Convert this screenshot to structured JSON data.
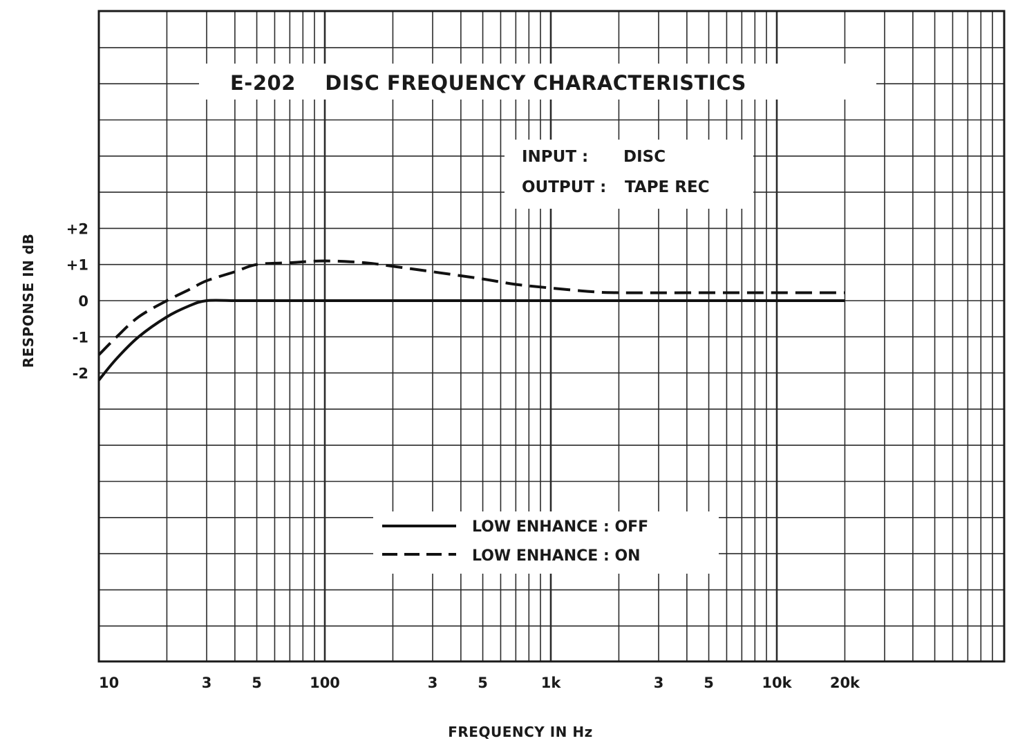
{
  "chart_data": {
    "type": "line",
    "title": "E-202    DISC FREQUENCY CHARACTERISTICS",
    "conditions": {
      "input_label": "INPUT :",
      "input_value": "DISC",
      "output_label": "OUTPUT :",
      "output_value": "TAPE REC"
    },
    "xlabel": "FREQUENCY IN Hz",
    "ylabel": "RESPONSE IN dB",
    "x_scale": "log",
    "xlim": [
      10,
      100000
    ],
    "ylim": [
      -10,
      8
    ],
    "grid": true,
    "legend_position": "bottom-center",
    "x_ticks": [
      {
        "value": 10,
        "label": "10"
      },
      {
        "value": 30,
        "label": "3"
      },
      {
        "value": 50,
        "label": "5"
      },
      {
        "value": 100,
        "label": "100"
      },
      {
        "value": 300,
        "label": "3"
      },
      {
        "value": 500,
        "label": "5"
      },
      {
        "value": 1000,
        "label": "1k"
      },
      {
        "value": 3000,
        "label": "3"
      },
      {
        "value": 5000,
        "label": "5"
      },
      {
        "value": 10000,
        "label": "10k"
      },
      {
        "value": 20000,
        "label": "20k"
      }
    ],
    "y_ticks": [
      {
        "value": 2,
        "label": "+2"
      },
      {
        "value": 1,
        "label": "+1"
      },
      {
        "value": 0,
        "label": "0"
      },
      {
        "value": -1,
        "label": "-1"
      },
      {
        "value": -2,
        "label": "-2"
      }
    ],
    "series": [
      {
        "name": "LOW ENHANCE : OFF",
        "style": "solid",
        "x": [
          10,
          12,
          15,
          20,
          25,
          30,
          40,
          50,
          100,
          1000,
          10000,
          20000
        ],
        "values": [
          -2.2,
          -1.6,
          -1.0,
          -0.45,
          -0.15,
          0.0,
          0.0,
          0.0,
          0.0,
          0.0,
          0.0,
          0.0
        ]
      },
      {
        "name": "LOW ENHANCE : ON",
        "style": "dashed",
        "x": [
          10,
          12,
          15,
          20,
          25,
          30,
          40,
          50,
          70,
          100,
          150,
          200,
          300,
          500,
          700,
          1000,
          1500,
          2000,
          5000,
          10000,
          20000
        ],
        "values": [
          -1.5,
          -1.0,
          -0.45,
          0.0,
          0.3,
          0.55,
          0.8,
          1.0,
          1.05,
          1.1,
          1.05,
          0.95,
          0.8,
          0.6,
          0.45,
          0.35,
          0.25,
          0.22,
          0.22,
          0.22,
          0.22
        ]
      }
    ],
    "colors": {
      "line": "#111111",
      "grid": "#2a2a2a",
      "background": "#ffffff"
    }
  }
}
